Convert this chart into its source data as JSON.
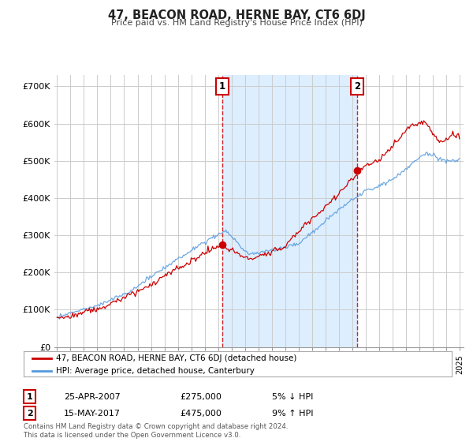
{
  "title": "47, BEACON ROAD, HERNE BAY, CT6 6DJ",
  "subtitle": "Price paid vs. HM Land Registry's House Price Index (HPI)",
  "ylabel_ticks": [
    "£0",
    "£100K",
    "£200K",
    "£300K",
    "£400K",
    "£500K",
    "£600K",
    "£700K"
  ],
  "ytick_values": [
    0,
    100000,
    200000,
    300000,
    400000,
    500000,
    600000,
    700000
  ],
  "ylim": [
    0,
    730000
  ],
  "background_color": "#ffffff",
  "plot_bg_color": "#ffffff",
  "shading_color": "#ddeeff",
  "grid_color": "#cccccc",
  "sale1_x": 2007.3,
  "sale1_y": 275000,
  "sale2_x": 2017.37,
  "sale2_y": 475000,
  "legend_label_red": "47, BEACON ROAD, HERNE BAY, CT6 6DJ (detached house)",
  "legend_label_blue": "HPI: Average price, detached house, Canterbury",
  "footnote": "Contains HM Land Registry data © Crown copyright and database right 2024.\nThis data is licensed under the Open Government Licence v3.0.",
  "table_row1": [
    "1",
    "25-APR-2007",
    "£275,000",
    "5% ↓ HPI"
  ],
  "table_row2": [
    "2",
    "15-MAY-2017",
    "£475,000",
    "9% ↑ HPI"
  ],
  "hpi_color": "#5599dd",
  "price_color": "#cc0000",
  "dashed_line_color": "#cc0000",
  "marker_color": "#cc0000",
  "years_start": 1995,
  "years_end": 2025,
  "xmin": 1994.8,
  "xmax": 2025.3
}
